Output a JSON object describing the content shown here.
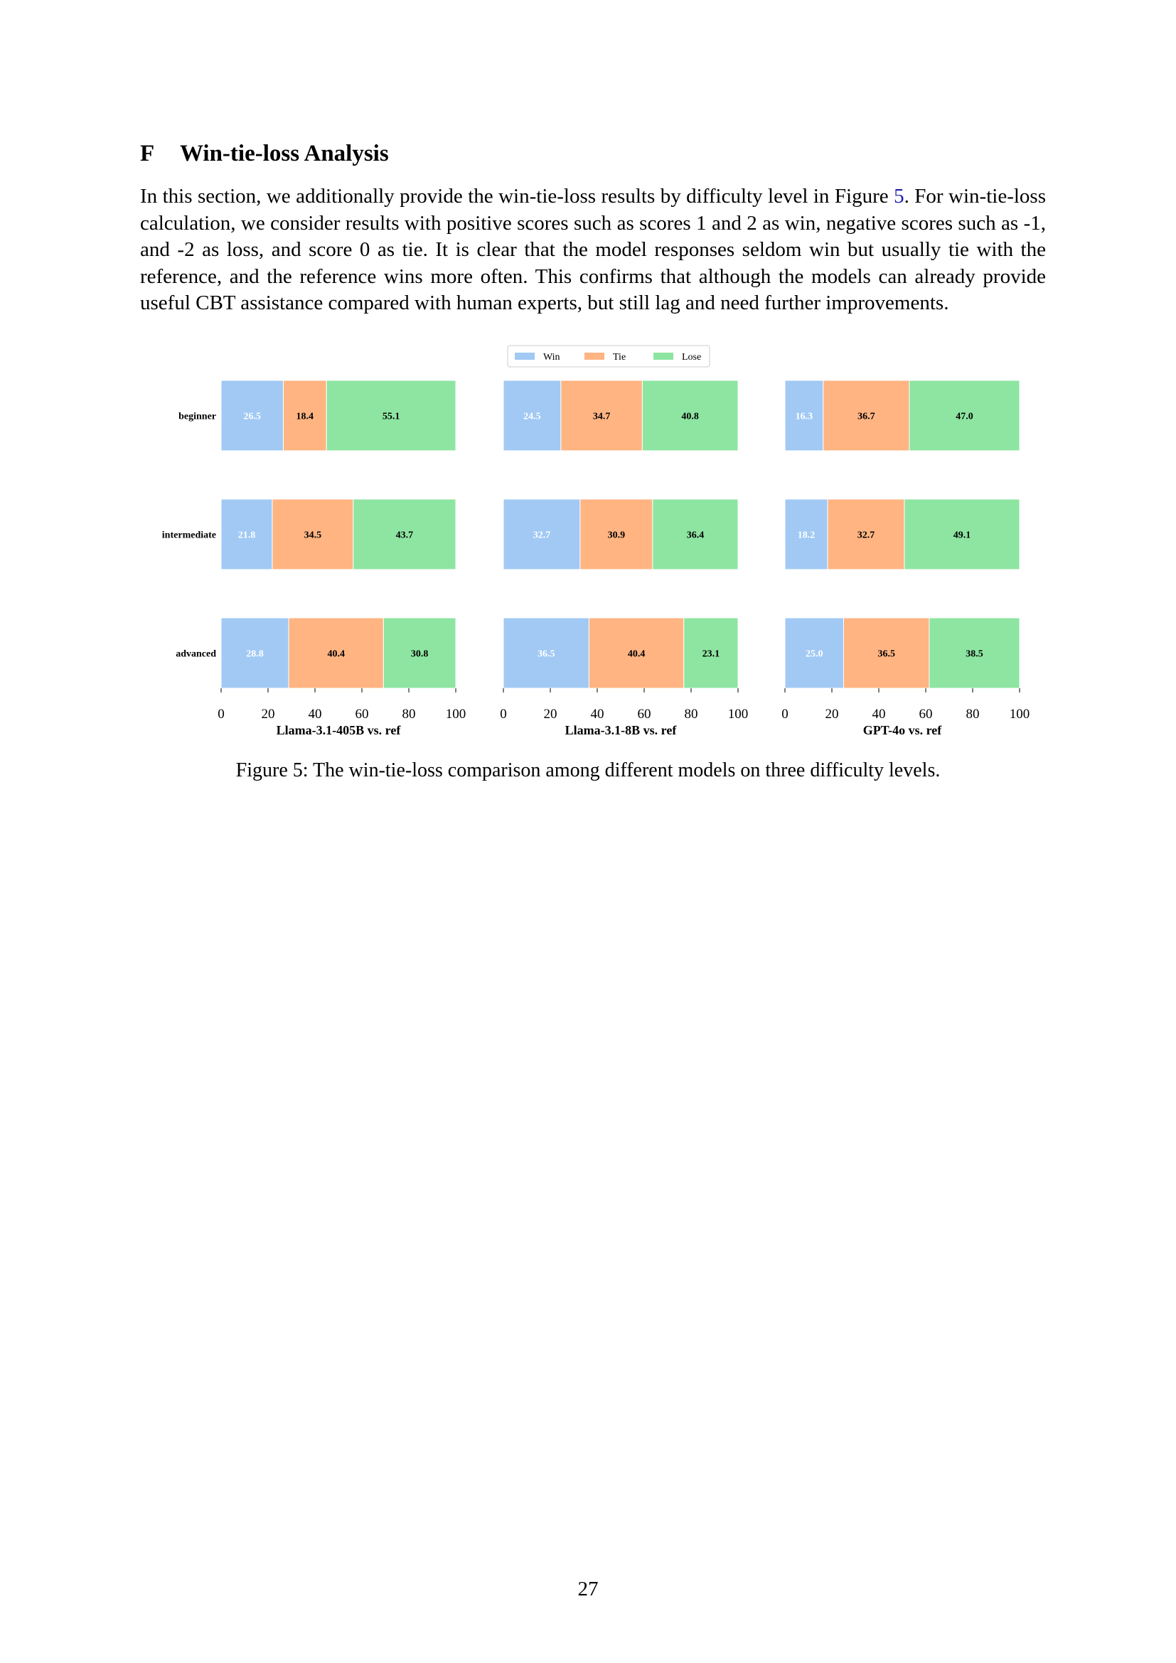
{
  "section": {
    "number": "F",
    "title": "Win-tie-loss Analysis"
  },
  "paragraph": {
    "before_ref": "In this section, we additionally provide the win-tie-loss results by difficulty level in Figure ",
    "ref": "5",
    "after_ref": ". For win-tie-loss calculation, we consider results with positive scores such as scores 1 and 2 as win, negative scores such as -1, and -2 as loss, and score 0 as tie. It is clear that the model responses seldom win but usually tie with the reference, and the reference wins more often. This confirms that although the models can already provide useful CBT assistance compared with human experts, but still lag and need further improvements."
  },
  "chart_data": {
    "type": "bar",
    "orientation": "horizontal",
    "stacked": true,
    "categories": [
      "beginner",
      "intermediate",
      "advanced"
    ],
    "legend": [
      "Win",
      "Tie",
      "Lose"
    ],
    "legend_placement": "top-center",
    "colors": {
      "Win": "#a1c9f4",
      "Tie": "#ffb482",
      "Lose": "#8de5a1"
    },
    "xlim": [
      0,
      100
    ],
    "xticks": [
      "0",
      "20",
      "40",
      "60",
      "80",
      "100"
    ],
    "grid": false,
    "panels": [
      {
        "xlabel": "Llama-3.1-405B vs. ref",
        "series": [
          {
            "name": "Win",
            "values": [
              26.5,
              21.8,
              28.8
            ],
            "labels": [
              "26.5",
              "21.8",
              "28.8"
            ]
          },
          {
            "name": "Tie",
            "values": [
              18.4,
              34.5,
              40.4
            ],
            "labels": [
              "18.4",
              "34.5",
              "40.4"
            ]
          },
          {
            "name": "Lose",
            "values": [
              55.1,
              43.7,
              30.8
            ],
            "labels": [
              "55.1",
              "43.7",
              "30.8"
            ]
          }
        ]
      },
      {
        "xlabel": "Llama-3.1-8B vs. ref",
        "series": [
          {
            "name": "Win",
            "values": [
              24.5,
              32.7,
              36.5
            ],
            "labels": [
              "24.5",
              "32.7",
              "36.5"
            ]
          },
          {
            "name": "Tie",
            "values": [
              34.7,
              30.9,
              40.4
            ],
            "labels": [
              "34.7",
              "30.9",
              "40.4"
            ]
          },
          {
            "name": "Lose",
            "values": [
              40.8,
              36.4,
              23.1
            ],
            "labels": [
              "40.8",
              "36.4",
              "23.1"
            ]
          }
        ]
      },
      {
        "xlabel": "GPT-4o vs. ref",
        "series": [
          {
            "name": "Win",
            "values": [
              16.3,
              18.2,
              25.0
            ],
            "labels": [
              "16.3",
              "18.2",
              "25.0"
            ]
          },
          {
            "name": "Tie",
            "values": [
              36.7,
              32.7,
              36.5
            ],
            "labels": [
              "36.7",
              "32.7",
              "36.5"
            ]
          },
          {
            "name": "Lose",
            "values": [
              47.0,
              49.1,
              38.5
            ],
            "labels": [
              "47.0",
              "49.1",
              "38.5"
            ]
          }
        ]
      }
    ]
  },
  "caption": "Figure 5: The win-tie-loss comparison among different models on three difficulty levels.",
  "page_number": "27"
}
